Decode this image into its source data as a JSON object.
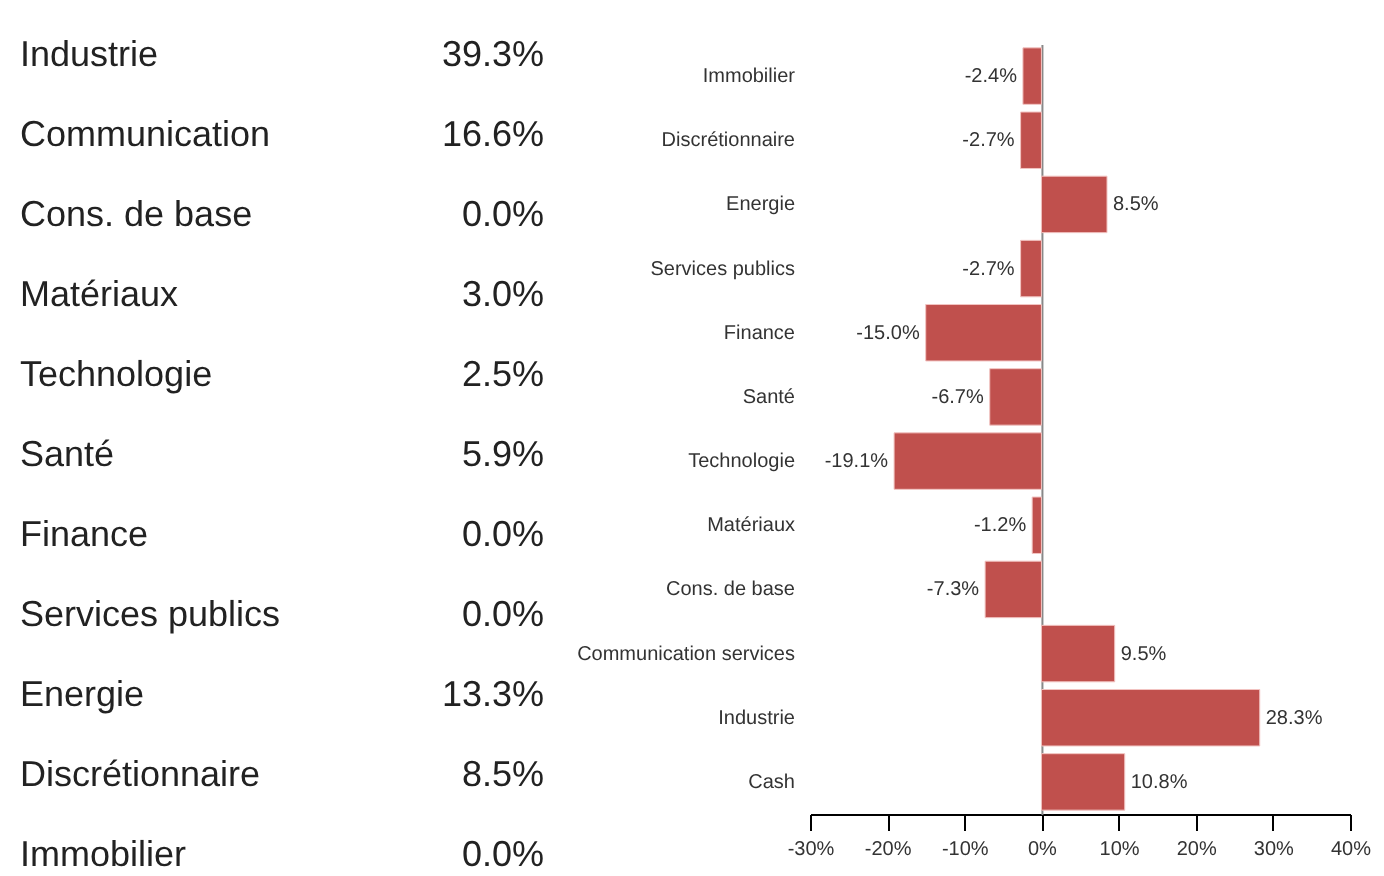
{
  "chart_data": [
    {
      "type": "other",
      "annotations": [
        "Industrie",
        "39.3%",
        "Communication",
        "16.6%",
        "Cons. de base",
        "0.0%",
        "Matériaux",
        "3.0%",
        "Technologie",
        "2.5%",
        "Santé",
        "5.9%",
        "Finance",
        "0.0%",
        "Services publics",
        "0.0%",
        "Energie",
        "13.3%",
        "Discrétionnaire",
        "8.5%",
        "Immobilier",
        "0.0%"
      ]
    },
    {
      "type": "bar",
      "orientation": "horizontal",
      "categories": [
        "Immobilier",
        "Discrétionnaire",
        "Energie",
        "Services publics",
        "Finance",
        "Santé",
        "Technologie",
        "Matériaux",
        "Cons. de base",
        "Communication services",
        "Industrie",
        "Cash"
      ],
      "values": [
        -2.4,
        -2.7,
        8.5,
        -2.7,
        -15.0,
        -6.7,
        -19.1,
        -1.2,
        -7.3,
        9.5,
        28.3,
        10.8
      ],
      "value_labels": [
        "-2.4%",
        "-2.7%",
        "8.5%",
        "-2.7%",
        "-15.0%",
        "-6.7%",
        "-19.1%",
        "-1.2%",
        "-7.3%",
        "9.5%",
        "28.3%",
        "10.8%"
      ],
      "color": "#c0504d",
      "xlim": [
        -30,
        40
      ],
      "xticks": [
        {
          "value": -30,
          "label": "-30%"
        },
        {
          "value": -20,
          "label": "-20%"
        },
        {
          "value": -10,
          "label": "-10%"
        },
        {
          "value": 0,
          "label": "0%"
        },
        {
          "value": 10,
          "label": "10%"
        },
        {
          "value": 20,
          "label": "20%"
        },
        {
          "value": 30,
          "label": "30%"
        },
        {
          "value": 40,
          "label": "40%"
        }
      ]
    }
  ]
}
